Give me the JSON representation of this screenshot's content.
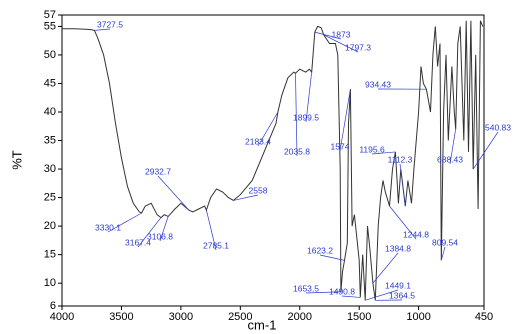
{
  "chart_data": {
    "type": "line",
    "x_label": "cm-1",
    "y_label": "%T",
    "xlim": [
      4000,
      450
    ],
    "ylim": [
      6,
      57
    ],
    "xticks": [
      4000,
      3500,
      3000,
      2500,
      2000,
      1500,
      1000,
      450
    ],
    "yticks": [
      6,
      10,
      15,
      20,
      25,
      30,
      35,
      40,
      45,
      50,
      55,
      57
    ],
    "color": "#333333",
    "annotation_color": "#2a3bd0",
    "x": [
      4000,
      3900,
      3800,
      3750,
      3727.5,
      3700,
      3650,
      3600,
      3550,
      3500,
      3450,
      3400,
      3350,
      3330.1,
      3300,
      3250,
      3200,
      3167.4,
      3140,
      3106.8,
      3050,
      3000,
      2932.7,
      2900,
      2850,
      2800,
      2785.1,
      2750,
      2700,
      2650,
      2600,
      2558,
      2500,
      2400,
      2300,
      2200,
      2183.4,
      2150,
      2100,
      2050,
      2035.8,
      2000,
      1950,
      1920,
      1899.5,
      1873,
      1850,
      1820,
      1797.3,
      1750,
      1700,
      1680,
      1660,
      1653.5,
      1640,
      1623.2,
      1600,
      1590,
      1574,
      1560,
      1540,
      1520,
      1500,
      1490.8,
      1470,
      1449.1,
      1430,
      1410,
      1384.8,
      1364.5,
      1340,
      1320,
      1300,
      1280,
      1244.8,
      1220,
      1195.6,
      1170,
      1150,
      1112.3,
      1090,
      1060,
      1040,
      1000,
      980,
      960,
      934.43,
      900,
      880,
      860,
      840,
      820,
      809.54,
      790,
      770,
      750,
      720,
      700,
      688.43,
      670,
      650,
      620,
      600,
      580,
      560,
      540.83,
      520,
      500,
      480,
      460
    ],
    "values": [
      54.6,
      54.6,
      54.5,
      54.4,
      54.3,
      53,
      50,
      45,
      38,
      32,
      27,
      24,
      22.5,
      22.3,
      23.5,
      24,
      22,
      21.5,
      22,
      21.7,
      23,
      24,
      22.8,
      22.5,
      23,
      23.5,
      22.8,
      25,
      26.5,
      26,
      25,
      24.5,
      25.5,
      28,
      33,
      38,
      40,
      43,
      46,
      47,
      46.8,
      47.5,
      47,
      47.5,
      47,
      54,
      55,
      54.8,
      53.5,
      52,
      52,
      50,
      30,
      8.5,
      12,
      14,
      17,
      38,
      44,
      20,
      22,
      18,
      14,
      7.5,
      15,
      7,
      20,
      16,
      10,
      7,
      20,
      25,
      28,
      26,
      23.5,
      30,
      33,
      24,
      30,
      23.5,
      28,
      24,
      30,
      40,
      48,
      45,
      44,
      40,
      50,
      55,
      48,
      52,
      14,
      40,
      50,
      35,
      48,
      40,
      37,
      52,
      55,
      35,
      56,
      33,
      56,
      30,
      50,
      23,
      56,
      55
    ],
    "peaks": [
      3727.5,
      3330.1,
      3167.4,
      3106.8,
      2932.7,
      2785.1,
      2558,
      2183.4,
      2035.8,
      1899.5,
      1873,
      1797.3,
      1574,
      1623.2,
      1653.5,
      1490.8,
      1449.1,
      1364.5,
      1384.8,
      1244.8,
      1195.6,
      1112.3,
      934.43,
      809.54,
      688.43,
      540.83
    ]
  }
}
